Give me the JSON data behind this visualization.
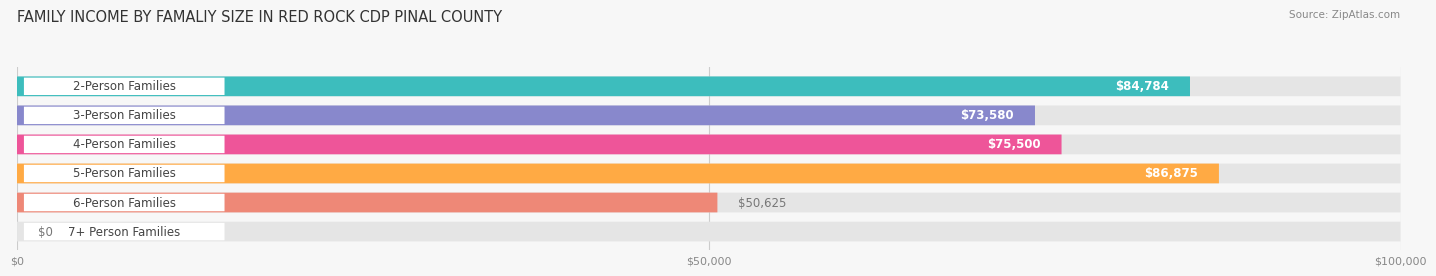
{
  "title": "FAMILY INCOME BY FAMALIY SIZE IN RED ROCK CDP PINAL COUNTY",
  "source": "Source: ZipAtlas.com",
  "categories": [
    "2-Person Families",
    "3-Person Families",
    "4-Person Families",
    "5-Person Families",
    "6-Person Families",
    "7+ Person Families"
  ],
  "values": [
    84784,
    73580,
    75500,
    86875,
    50625,
    0
  ],
  "bar_colors": [
    "#3dbdbd",
    "#8888cc",
    "#ee5599",
    "#ffaa44",
    "#ee8877",
    "#99bbdd"
  ],
  "label_colors": [
    "white",
    "white",
    "white",
    "white",
    "#777777",
    "#777777"
  ],
  "value_inside": [
    true,
    true,
    true,
    true,
    false,
    false
  ],
  "xlim": [
    0,
    100000
  ],
  "xticks": [
    0,
    50000,
    100000
  ],
  "xtick_labels": [
    "$0",
    "$50,000",
    "$100,000"
  ],
  "bar_height": 0.68,
  "background_color": "#f7f7f7",
  "bar_bg_color": "#e5e5e5",
  "title_fontsize": 10.5,
  "label_fontsize": 8.5,
  "value_fontsize": 8.5
}
